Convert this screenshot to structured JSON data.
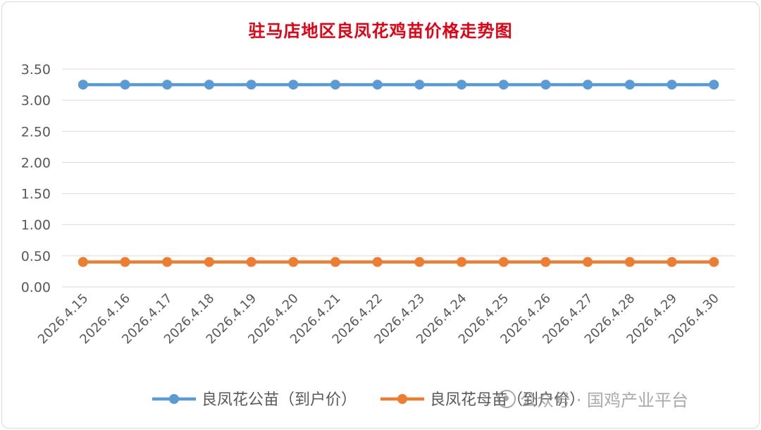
{
  "chart_data": {
    "type": "line",
    "title": "驻马店地区良凤花鸡苗价格走势图",
    "categories": [
      "2026.4.15",
      "2026.4.16",
      "2026.4.17",
      "2026.4.18",
      "2026.4.19",
      "2026.4.20",
      "2026.4.21",
      "2026.4.22",
      "2026.4.23",
      "2026.4.24",
      "2026.4.25",
      "2026.4.26",
      "2026.4.27",
      "2026.4.28",
      "2026.4.29",
      "2026.4.30"
    ],
    "y_ticks": [
      "0.00",
      "0.50",
      "1.00",
      "1.50",
      "2.00",
      "2.50",
      "3.00",
      "3.50"
    ],
    "ylim": [
      0,
      3.5
    ],
    "grid": true,
    "legend_position": "bottom",
    "series": [
      {
        "name": "良凤花公苗（到户价）",
        "color": "#5b9bd5",
        "values": [
          3.25,
          3.25,
          3.25,
          3.25,
          3.25,
          3.25,
          3.25,
          3.25,
          3.25,
          3.25,
          3.25,
          3.25,
          3.25,
          3.25,
          3.25,
          3.25
        ]
      },
      {
        "name": "良凤花母苗（到户价）",
        "color": "#ed7d31",
        "values": [
          0.4,
          0.4,
          0.4,
          0.4,
          0.4,
          0.4,
          0.4,
          0.4,
          0.4,
          0.4,
          0.4,
          0.4,
          0.4,
          0.4,
          0.4,
          0.4
        ]
      }
    ]
  },
  "watermark": {
    "text": "公众号 · 国鸡产业平台",
    "icon": "wechat-icon"
  }
}
